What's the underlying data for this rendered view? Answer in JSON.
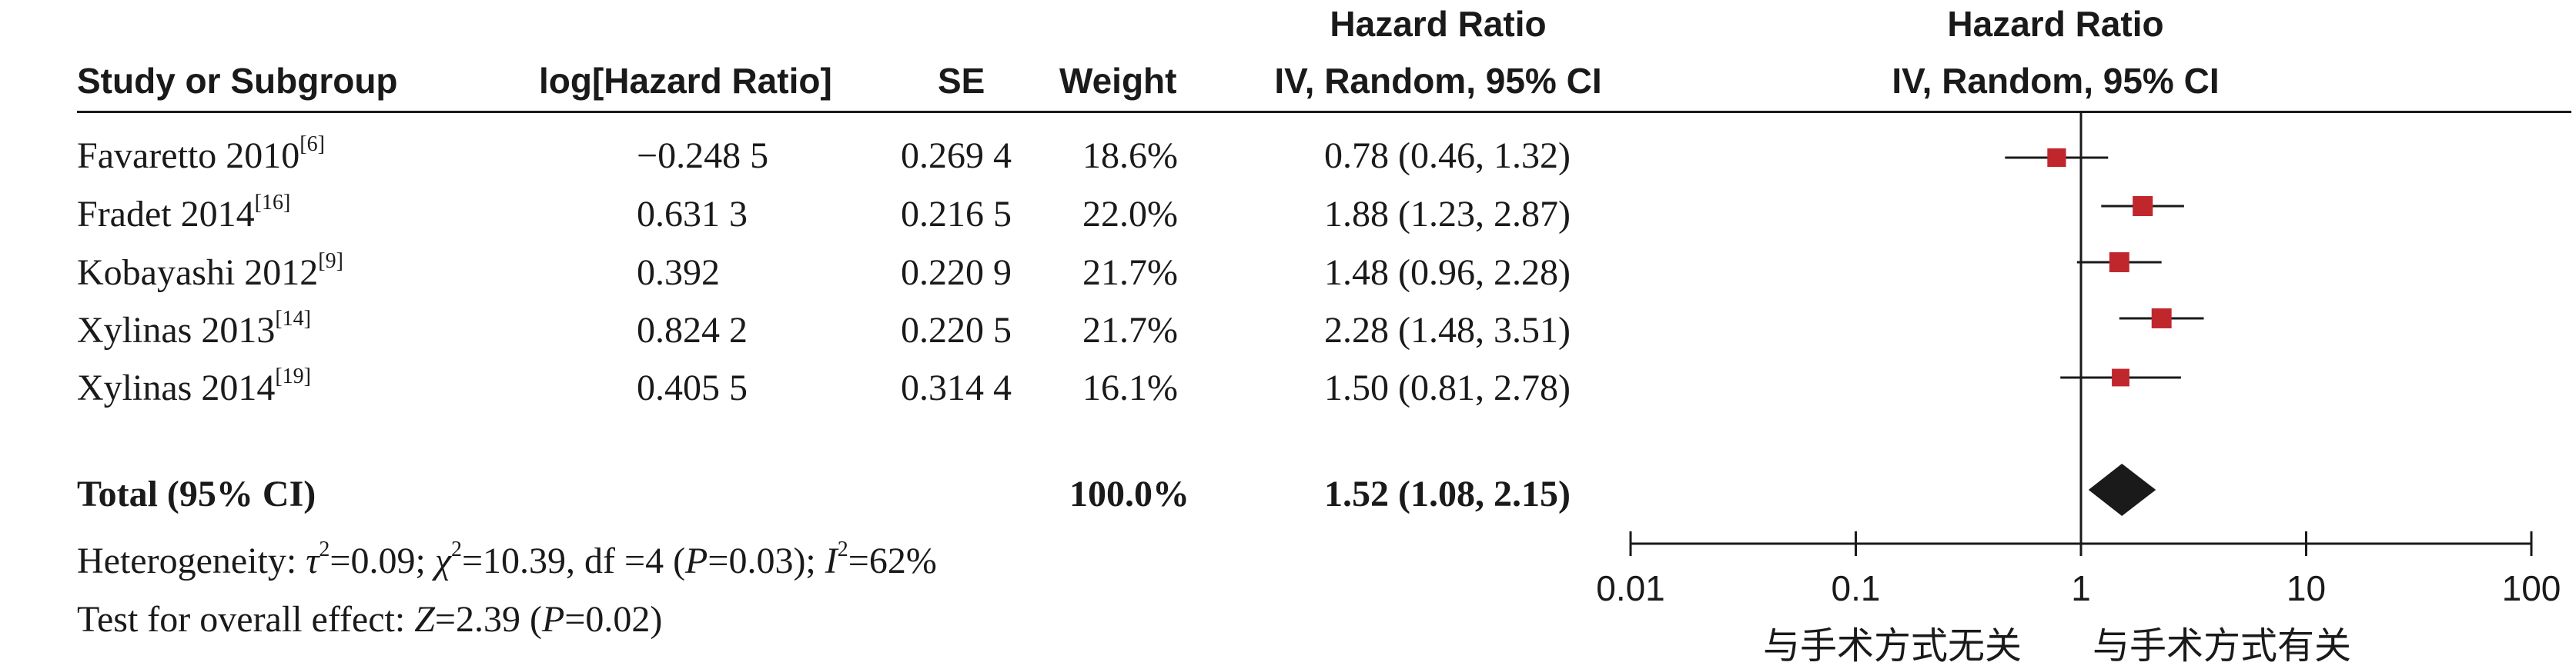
{
  "headers": {
    "study": "Study or Subgroup",
    "loghr": "log[Hazard Ratio]",
    "se": "SE",
    "weight": "Weight",
    "hr_line1": "Hazard Ratio",
    "hr_line2": "IV, Random, 95% CI",
    "plot_line1": "Hazard Ratio",
    "plot_line2": "IV, Random, 95% CI"
  },
  "studies": [
    {
      "name": "Favaretto 2010",
      "ref": "[6]",
      "loghr": "−0.248 5",
      "se": "0.269 4",
      "weight": "18.6%",
      "ci_text": "0.78 (0.46, 1.32)"
    },
    {
      "name": "Fradet 2014",
      "ref": "[16]",
      "loghr": "0.631 3",
      "se": "0.216 5",
      "weight": "22.0%",
      "ci_text": "1.88 (1.23, 2.87)"
    },
    {
      "name": "Kobayashi 2012",
      "ref": "[9]",
      "loghr": "0.392",
      "se": "0.220 9",
      "weight": "21.7%",
      "ci_text": "1.48 (0.96, 2.28)"
    },
    {
      "name": "Xylinas 2013",
      "ref": "[14]",
      "loghr": "0.824 2",
      "se": "0.220 5",
      "weight": "21.7%",
      "ci_text": "2.28 (1.48, 3.51)"
    },
    {
      "name": "Xylinas 2014",
      "ref": "[19]",
      "loghr": "0.405 5",
      "se": "0.314 4",
      "weight": "16.1%",
      "ci_text": "1.50 (0.81, 2.78)"
    }
  ],
  "total": {
    "label": "Total (95% CI)",
    "weight": "100.0%",
    "ci_text": "1.52 (1.08, 2.15)"
  },
  "heterogeneity": {
    "prefix": "Heterogeneity: ",
    "tau_sym": "τ",
    "tau_exp": "2",
    "tau_val": "=0.09; ",
    "chi_sym": "χ",
    "chi_exp": "2",
    "chi_val": "=10.39, df =4 (",
    "p_sym": "P",
    "p_val": "=0.03); ",
    "i_sym": "I",
    "i_exp": "2",
    "i_val": "=62%"
  },
  "overall": {
    "prefix": "Test for overall effect: ",
    "z_sym": "Z",
    "z_val": "=2.39 (",
    "p_sym": "P",
    "p_val": "=0.02)"
  },
  "axis_labels": {
    "favours_left": "与手术方式无关",
    "favours_right": "与手术方式有关"
  },
  "colors": {
    "marker": "#c0272d",
    "diamond": "#1a1a1a",
    "line": "#1a1a1a"
  },
  "chart_data": {
    "type": "forest",
    "x_scale": "log",
    "xlim": [
      0.01,
      100
    ],
    "ticks": [
      "0.01",
      "0.1",
      "1",
      "10",
      "100"
    ],
    "tick_values": [
      0.01,
      0.1,
      1,
      10,
      100
    ],
    "null_line": 1,
    "points": [
      {
        "study": "Favaretto 2010",
        "hr": 0.78,
        "lower": 0.46,
        "upper": 1.32,
        "weight": 18.6
      },
      {
        "study": "Fradet 2014",
        "hr": 1.88,
        "lower": 1.23,
        "upper": 2.87,
        "weight": 22.0
      },
      {
        "study": "Kobayashi 2012",
        "hr": 1.48,
        "lower": 0.96,
        "upper": 2.28,
        "weight": 21.7
      },
      {
        "study": "Xylinas 2013",
        "hr": 2.28,
        "lower": 1.48,
        "upper": 3.51,
        "weight": 21.7
      },
      {
        "study": "Xylinas 2014",
        "hr": 1.5,
        "lower": 0.81,
        "upper": 2.78,
        "weight": 16.1
      }
    ],
    "pooled": {
      "hr": 1.52,
      "lower": 1.08,
      "upper": 2.15
    }
  }
}
